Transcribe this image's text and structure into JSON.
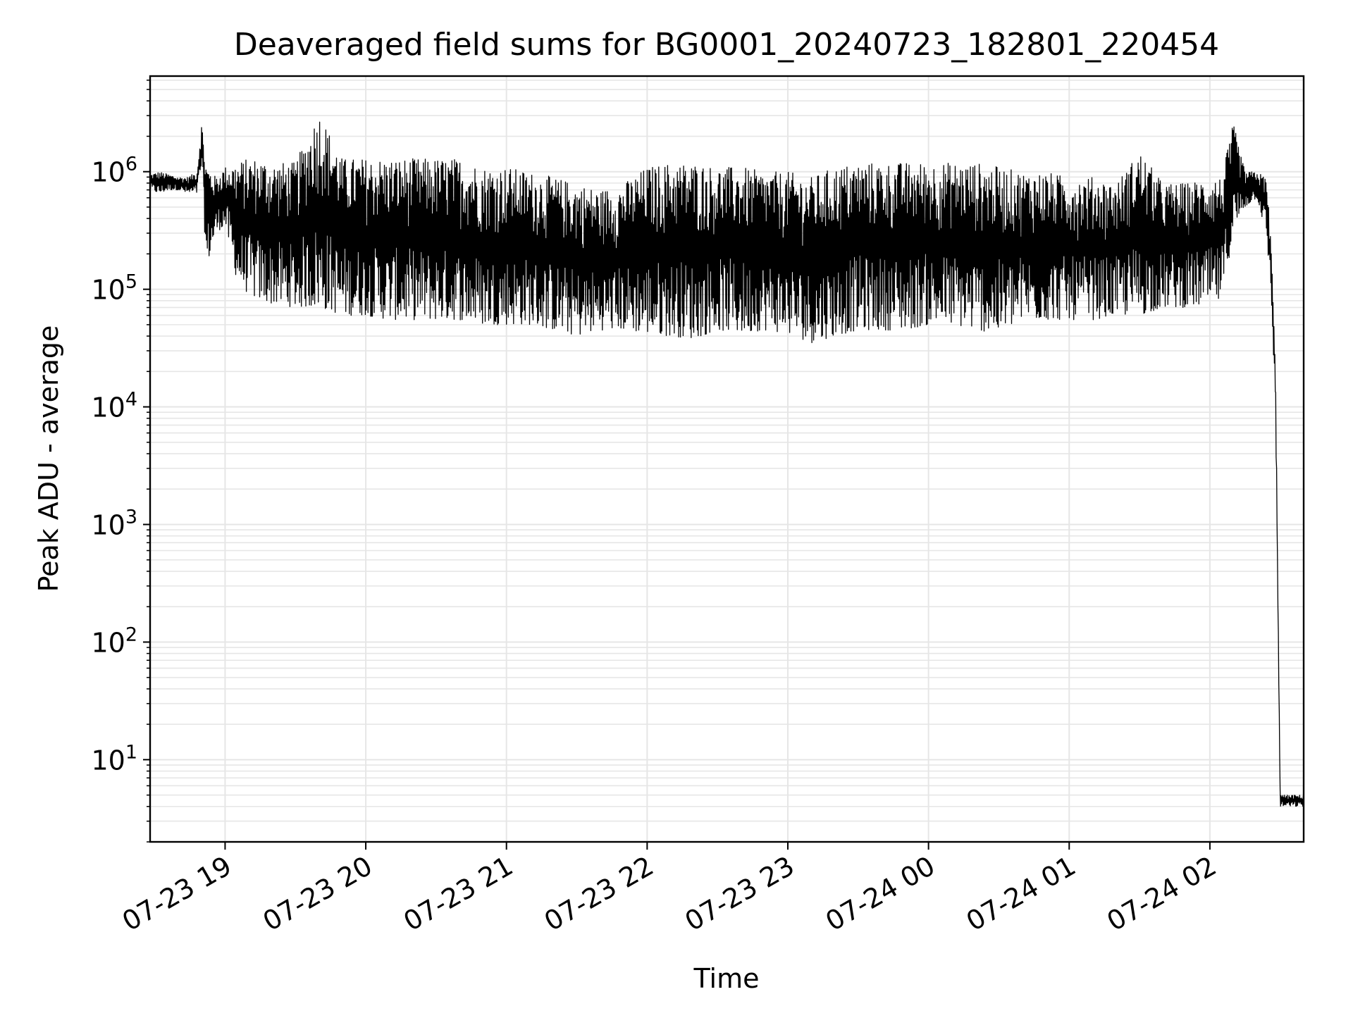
{
  "chart_data": {
    "type": "line",
    "title": "Deaveraged field sums for BG0001_20240723_182801_220454",
    "xlabel": "Time",
    "ylabel": "Peak ADU - average",
    "yscale": "log",
    "ylim": [
      2,
      6500000
    ],
    "xlim": [
      "2024-07-23 18:28:01",
      "2024-07-24 02:40:00"
    ],
    "grid": true,
    "line_color": "#000000",
    "grid_color": "#e6e6e6",
    "x_ticks": [
      {
        "label": "07-23 19",
        "time": "2024-07-23 19:00"
      },
      {
        "label": "07-23 20",
        "time": "2024-07-23 20:00"
      },
      {
        "label": "07-23 21",
        "time": "2024-07-23 21:00"
      },
      {
        "label": "07-23 22",
        "time": "2024-07-23 22:00"
      },
      {
        "label": "07-23 23",
        "time": "2024-07-23 23:00"
      },
      {
        "label": "07-24 00",
        "time": "2024-07-24 00:00"
      },
      {
        "label": "07-24 01",
        "time": "2024-07-24 01:00"
      },
      {
        "label": "07-24 02",
        "time": "2024-07-24 02:00"
      }
    ],
    "y_ticks": [
      {
        "base": "10",
        "exp": "1",
        "value": 10
      },
      {
        "base": "10",
        "exp": "2",
        "value": 100
      },
      {
        "base": "10",
        "exp": "3",
        "value": 1000
      },
      {
        "base": "10",
        "exp": "4",
        "value": 10000
      },
      {
        "base": "10",
        "exp": "5",
        "value": 100000
      },
      {
        "base": "10",
        "exp": "6",
        "value": 1000000
      }
    ],
    "series": [
      {
        "x": [
          "2024-07-23 18:28",
          "2024-07-23 18:32",
          "2024-07-23 18:36",
          "2024-07-23 18:40",
          "2024-07-23 18:44",
          "2024-07-23 18:48",
          "2024-07-23 18:50",
          "2024-07-23 18:52",
          "2024-07-23 18:56",
          "2024-07-23 19:00",
          "2024-07-23 19:05",
          "2024-07-23 19:10",
          "2024-07-23 19:15",
          "2024-07-23 19:20",
          "2024-07-23 19:30",
          "2024-07-23 19:40",
          "2024-07-23 19:50",
          "2024-07-23 20:00",
          "2024-07-23 20:10",
          "2024-07-23 20:20",
          "2024-07-23 20:30",
          "2024-07-23 20:40",
          "2024-07-23 20:50",
          "2024-07-23 21:00",
          "2024-07-23 21:10",
          "2024-07-23 21:20",
          "2024-07-23 21:30",
          "2024-07-23 21:40",
          "2024-07-23 21:50",
          "2024-07-23 22:00",
          "2024-07-23 22:10",
          "2024-07-23 22:20",
          "2024-07-23 22:30",
          "2024-07-23 22:40",
          "2024-07-23 22:50",
          "2024-07-23 23:00",
          "2024-07-23 23:10",
          "2024-07-23 23:20",
          "2024-07-23 23:30",
          "2024-07-23 23:40",
          "2024-07-23 23:50",
          "2024-07-24 00:00",
          "2024-07-24 00:10",
          "2024-07-24 00:20",
          "2024-07-24 00:30",
          "2024-07-24 00:40",
          "2024-07-24 00:50",
          "2024-07-24 01:00",
          "2024-07-24 01:10",
          "2024-07-24 01:20",
          "2024-07-24 01:30",
          "2024-07-24 01:40",
          "2024-07-24 01:50",
          "2024-07-24 02:00",
          "2024-07-24 02:05",
          "2024-07-24 02:10",
          "2024-07-24 02:15",
          "2024-07-24 02:20",
          "2024-07-24 02:24",
          "2024-07-24 02:26",
          "2024-07-24 02:28",
          "2024-07-24 02:30",
          "2024-07-24 02:35",
          "2024-07-24 02:40"
        ],
        "upper": [
          950000,
          1000000,
          950000,
          900000,
          900000,
          1000000,
          2600000,
          1200000,
          900000,
          1100000,
          1200000,
          1300000,
          1300000,
          1200000,
          1200000,
          3300000,
          1300000,
          1300000,
          1300000,
          1300000,
          1300000,
          1300000,
          1100000,
          1100000,
          1000000,
          900000,
          800000,
          700000,
          800000,
          1100000,
          1200000,
          1200000,
          1100000,
          1100000,
          1000000,
          1000000,
          900000,
          1100000,
          1200000,
          1200000,
          1200000,
          1200000,
          1200000,
          1200000,
          1100000,
          1000000,
          1000000,
          900000,
          900000,
          800000,
          1500000,
          800000,
          800000,
          900000,
          900000,
          2600000,
          1000000,
          1000000,
          900000,
          300000,
          20000,
          5,
          5,
          5
        ],
        "lower": [
          700000,
          650000,
          700000,
          700000,
          650000,
          650000,
          1100000,
          150000,
          300000,
          350000,
          120000,
          90000,
          80000,
          75000,
          70000,
          70000,
          60000,
          60000,
          55000,
          55000,
          55000,
          55000,
          50000,
          50000,
          50000,
          45000,
          40000,
          45000,
          45000,
          42000,
          40000,
          38000,
          45000,
          42000,
          45000,
          42000,
          35000,
          40000,
          45000,
          45000,
          45000,
          50000,
          50000,
          45000,
          42000,
          55000,
          55000,
          55000,
          55000,
          60000,
          60000,
          70000,
          70000,
          75000,
          80000,
          300000,
          500000,
          600000,
          300000,
          100000,
          10000,
          4,
          4,
          4
        ]
      }
    ]
  }
}
